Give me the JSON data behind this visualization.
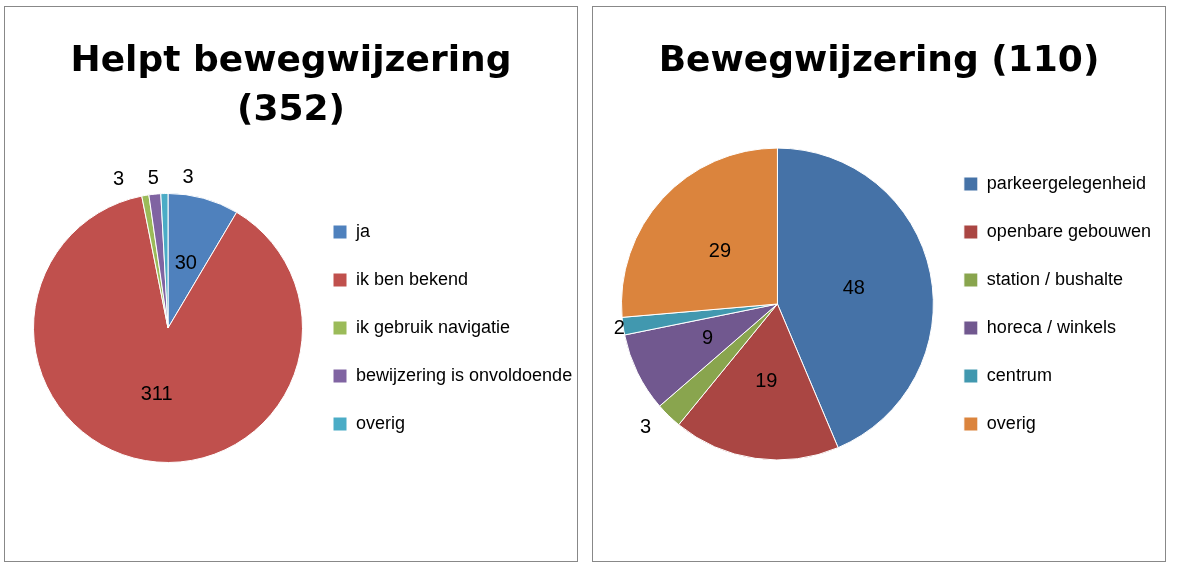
{
  "chart_data": [
    {
      "type": "pie",
      "title": "Helpt bewegwijzering (352)",
      "categories": [
        "ja",
        "ik ben bekend",
        "ik gebruik navigatie",
        "bewijzering is onvoldoende",
        "overig"
      ],
      "values": [
        30,
        311,
        3,
        5,
        3
      ],
      "colors": [
        "#4f81bd",
        "#c0504d",
        "#9bbb59",
        "#8064a2",
        "#4bacc6"
      ],
      "data_labels": true,
      "legend": "right"
    },
    {
      "type": "pie",
      "title": "Bewegwijzering (110)",
      "categories": [
        "parkeergelegenheid",
        "openbare gebouwen",
        "station / bushalte",
        "horeca / winkels",
        "centrum",
        "overig"
      ],
      "values": [
        48,
        19,
        3,
        9,
        2,
        29
      ],
      "colors": [
        "#4572a7",
        "#aa4643",
        "#89a54e",
        "#71588f",
        "#4198af",
        "#db843d"
      ],
      "data_labels": true,
      "legend": "right"
    }
  ]
}
